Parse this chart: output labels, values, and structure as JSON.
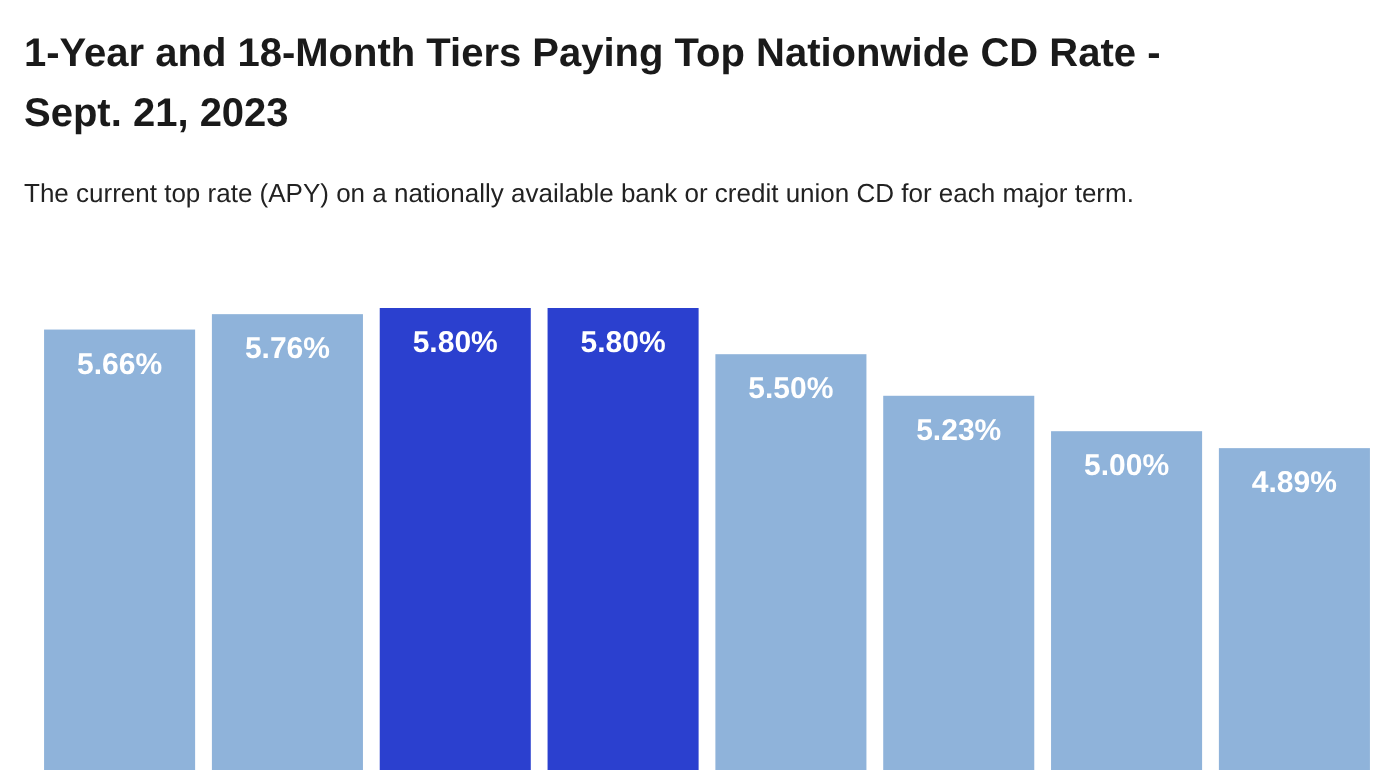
{
  "chart_data": {
    "type": "bar",
    "title": "1-Year and 18-Month Tiers Paying Top Nationwide CD Rate - Sept. 21, 2023",
    "subtitle": "The current top rate (APY) on a nationally available bank or credit union CD for each major term.",
    "categories": [
      null,
      null,
      null,
      null,
      null,
      null,
      null,
      null
    ],
    "values": [
      5.66,
      5.76,
      5.8,
      5.8,
      5.5,
      5.23,
      5.0,
      4.89
    ],
    "colors": [
      "#8fb3da",
      "#8fb3da",
      "#2b40cf",
      "#2b40cf",
      "#8fb3da",
      "#8fb3da",
      "#8fb3da",
      "#8fb3da"
    ],
    "value_labels": [
      "5.66%",
      "5.76%",
      "5.80%",
      "5.80%",
      "5.50%",
      "5.23%",
      "5.00%",
      "4.89%"
    ],
    "ylim": [
      2.8,
      5.8
    ]
  }
}
